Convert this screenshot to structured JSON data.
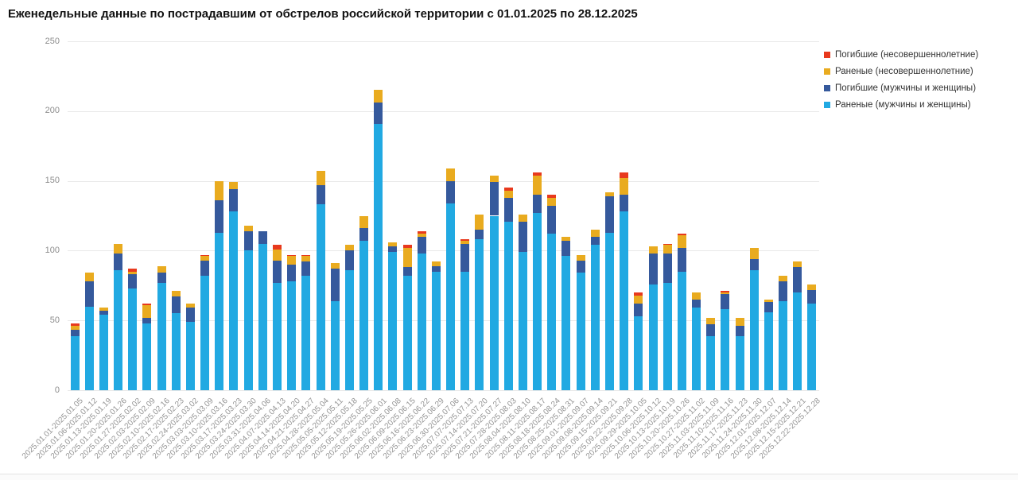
{
  "title": "Еженедельные данные по пострадавшим от обстрелов российской территории с 01.01.2025 по 28.12.2025",
  "y_axis": {
    "ticks": [
      0,
      50,
      100,
      150,
      200,
      250
    ]
  },
  "palette": {
    "grid": "#e8e8e8",
    "axis_text": "#8c8c8c",
    "x_label_text": "#949494",
    "title_text": "#111111",
    "legend_text": "#333333"
  },
  "chart_data": {
    "type": "bar",
    "stacked": true,
    "title": "Еженедельные данные по пострадавшим от обстрелов российской территории с 01.01.2025 по 28.12.2025",
    "xlabel": "",
    "ylabel": "",
    "ylim": [
      0,
      250
    ],
    "grid": "horizontal",
    "legend_position": "top-right",
    "categories": [
      "2025.01.01-2025.01.05",
      "2025.01.06-2025.01.12",
      "2025.01.13-2025.01.19",
      "2025.01.20-2025.01.26",
      "2025.01.27-2025.02.02",
      "2025.02.03-2025.02.09",
      "2025.02.10-2025.02.16",
      "2025.02.17-2025.02.23",
      "2025.02.24-2025.03.02",
      "2025.03.03-2025.03.09",
      "2025.03.10-2025.03.16",
      "2025.03.17-2025.03.23",
      "2025.03.24-2025.03.30",
      "2025.03.31-2025.04.06",
      "2025.04.07-2025.04.13",
      "2025.04.14-2025.04.20",
      "2025.04.21-2025.04.27",
      "2025.04.28-2025.05.04",
      "2025.05.05-2025.05.11",
      "2025.05.12-2025.05.18",
      "2025.05.19-2025.05.25",
      "2025.05.26-2025.06.01",
      "2025.06.02-2025.06.08",
      "2025.06.09-2025.06.15",
      "2025.06.16-2025.06.22",
      "2025.06.23-2025.06.29",
      "2025.06.30-2025.07.06",
      "2025.07.07-2025.07.13",
      "2025.07.14-2025.07.20",
      "2025.07.21-2025.07.27",
      "2025.07.28-2025.08.03",
      "2025.08.04-2025.08.10",
      "2025.08.11-2025.08.17",
      "2025.08.18-2025.08.24",
      "2025.08.25-2025.08.31",
      "2025.09.01-2025.09.07",
      "2025.09.08-2025.09.14",
      "2025.09.15-2025.09.21",
      "2025.09.22-2025.09.28",
      "2025.09.29-2025.10.05",
      "2025.10.06-2025.10.12",
      "2025.10.13-2025.10.19",
      "2025.10.20-2025.10.26",
      "2025.10.27-2025.11.02",
      "2025.11.03-2025.11.09",
      "2025.11.10-2025.11.16",
      "2025.11.17-2025.11.23",
      "2025.11.24-2025.11.30",
      "2025.12.01-2025.12.07",
      "2025.12.08-2025.12.14",
      "2025.12.15-2025.12.21",
      "2025.12.22-2025.12.28"
    ],
    "series": [
      {
        "name": "Погибшие (несовершеннолетние)",
        "color": "#e8391d",
        "values": [
          2,
          0,
          0,
          0,
          2,
          1,
          0,
          0,
          0,
          1,
          0,
          0,
          0,
          0,
          3,
          1,
          1,
          0,
          0,
          0,
          0,
          0,
          0,
          2,
          2,
          0,
          0,
          1,
          0,
          0,
          2,
          0,
          2,
          2,
          0,
          0,
          0,
          0,
          4,
          2,
          0,
          1,
          1,
          0,
          0,
          1,
          0,
          0,
          0,
          0,
          0,
          0
        ]
      },
      {
        "name": "Раненые (несовершеннолетние)",
        "color": "#e9ab1f",
        "values": [
          3,
          6,
          2,
          7,
          2,
          9,
          5,
          4,
          3,
          3,
          14,
          5,
          4,
          0,
          8,
          6,
          4,
          10,
          4,
          4,
          9,
          9,
          3,
          14,
          2,
          3,
          9,
          2,
          11,
          5,
          5,
          5,
          14,
          6,
          3,
          4,
          5,
          3,
          12,
          6,
          5,
          6,
          9,
          5,
          5,
          1,
          6,
          8,
          2,
          4,
          4,
          4
        ]
      },
      {
        "name": "Погибшие (мужчины и женщины)",
        "color": "#35599c",
        "values": [
          4,
          18,
          3,
          12,
          10,
          4,
          7,
          12,
          10,
          11,
          23,
          16,
          14,
          9,
          16,
          12,
          10,
          14,
          23,
          14,
          9,
          15,
          4,
          6,
          12,
          4,
          16,
          20,
          7,
          24,
          17,
          22,
          13,
          20,
          11,
          9,
          6,
          26,
          12,
          9,
          22,
          21,
          17,
          6,
          8,
          11,
          7,
          8,
          7,
          14,
          18,
          10
        ]
      },
      {
        "name": "Раненые (мужчины и женщины)",
        "color": "#21a9e2",
        "values": [
          39,
          60,
          54,
          86,
          73,
          48,
          77,
          55,
          49,
          82,
          113,
          128,
          100,
          105,
          77,
          78,
          82,
          133,
          64,
          86,
          107,
          191,
          99,
          82,
          98,
          85,
          134,
          85,
          108,
          125,
          121,
          99,
          127,
          112,
          96,
          84,
          104,
          113,
          128,
          53,
          76,
          77,
          85,
          59,
          39,
          58,
          39,
          86,
          56,
          64,
          70,
          62
        ]
      }
    ]
  }
}
